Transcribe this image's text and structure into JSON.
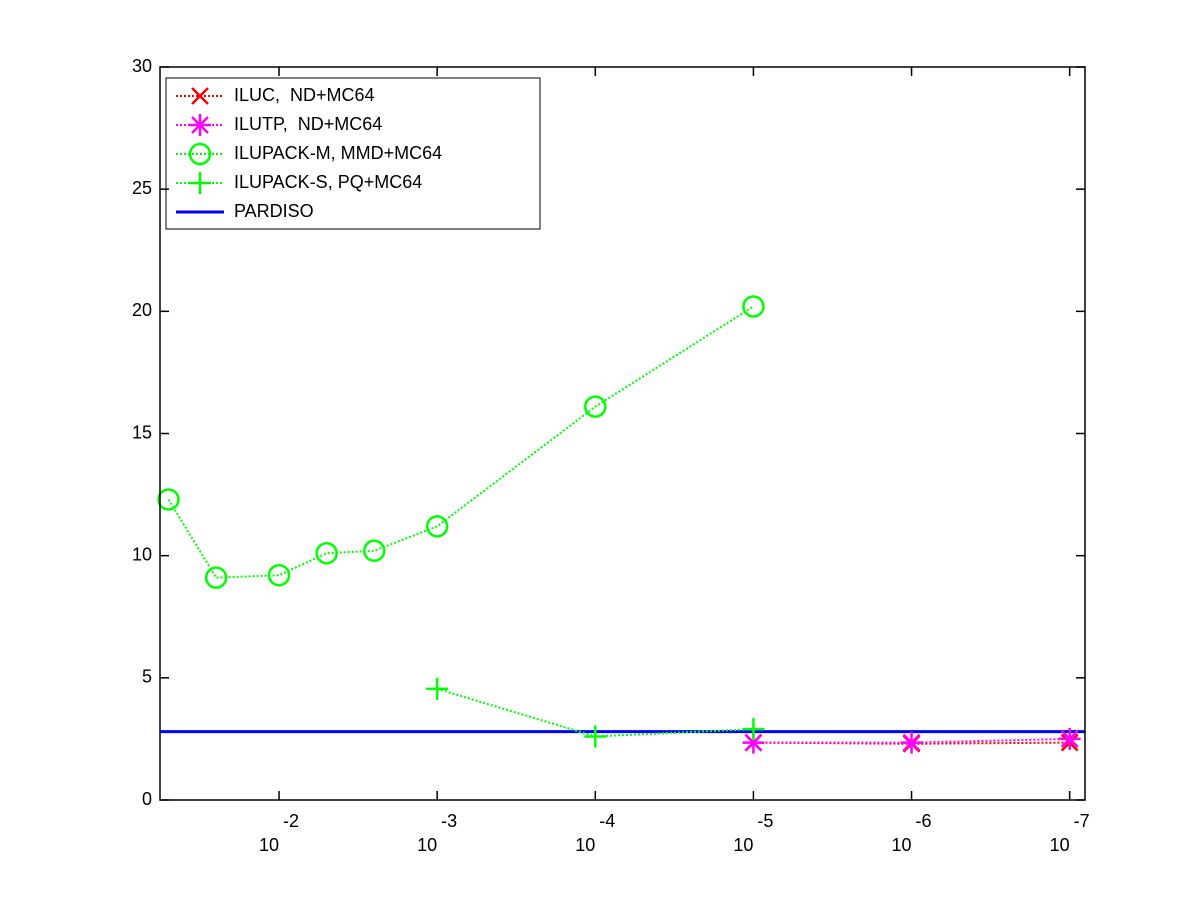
{
  "chart_data": {
    "type": "line",
    "x_scale": "log",
    "x_reversed": true,
    "xlim": [
      0.0566,
      8e-08
    ],
    "xticks": [
      {
        "value": 0.01,
        "label": "10",
        "exponent": "-2"
      },
      {
        "value": 0.001,
        "label": "10",
        "exponent": "-3"
      },
      {
        "value": 0.0001,
        "label": "10",
        "exponent": "-4"
      },
      {
        "value": 1e-05,
        "label": "10",
        "exponent": "-5"
      },
      {
        "value": 1e-06,
        "label": "10",
        "exponent": "-6"
      },
      {
        "value": 1e-07,
        "label": "10",
        "exponent": "-7"
      }
    ],
    "ylim": [
      0,
      30
    ],
    "yticks": [
      0,
      5,
      10,
      15,
      20,
      25,
      30
    ],
    "legend_position": "upper-left",
    "series": [
      {
        "name": "ILUC,  ND+MC64",
        "color": "#ff0000",
        "marker": "x",
        "line_style": "dotted",
        "x": [
          1e-05,
          1e-06,
          1e-07
        ],
        "values": [
          2.35,
          2.3,
          2.35
        ]
      },
      {
        "name": "ILUTP,  ND+MC64",
        "color": "#ff00ff",
        "marker": "star",
        "line_style": "dotted",
        "x": [
          1e-05,
          1e-06,
          1e-07
        ],
        "values": [
          2.35,
          2.35,
          2.5
        ]
      },
      {
        "name": "ILUPACK-M, MMD+MC64",
        "color": "#00ff00",
        "marker": "circle",
        "line_style": "dotted",
        "x": [
          0.05,
          0.025,
          0.01,
          0.005,
          0.0025,
          0.001,
          0.0001,
          1e-05
        ],
        "values": [
          12.3,
          9.1,
          9.2,
          10.1,
          10.2,
          11.2,
          16.1,
          20.2
        ]
      },
      {
        "name": "ILUPACK-S, PQ+MC64",
        "color": "#00ff00",
        "marker": "plus",
        "line_style": "dotted",
        "x": [
          0.001,
          0.0001,
          1e-05
        ],
        "values": [
          4.55,
          2.6,
          2.9
        ]
      },
      {
        "name": "PARDISO",
        "color": "#0000ff",
        "marker": "none",
        "line_style": "solid",
        "constant": 2.8
      }
    ]
  }
}
